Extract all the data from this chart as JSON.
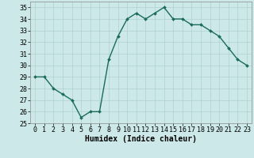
{
  "x": [
    0,
    1,
    2,
    3,
    4,
    5,
    6,
    7,
    8,
    9,
    10,
    11,
    12,
    13,
    14,
    15,
    16,
    17,
    18,
    19,
    20,
    21,
    22,
    23
  ],
  "y": [
    29,
    29,
    28,
    27.5,
    27,
    25.5,
    26,
    26,
    30.5,
    32.5,
    34,
    34.5,
    34,
    34.5,
    35,
    34,
    34,
    33.5,
    33.5,
    33,
    32.5,
    31.5,
    30.5,
    30
  ],
  "line_color": "#1a6b5a",
  "marker": "D",
  "marker_size": 2.0,
  "background_color": "#cce8e8",
  "grid_color": "#b0d0d0",
  "xlabel": "Humidex (Indice chaleur)",
  "ylim": [
    25,
    35.5
  ],
  "xlim": [
    -0.5,
    23.5
  ],
  "yticks": [
    25,
    26,
    27,
    28,
    29,
    30,
    31,
    32,
    33,
    34,
    35
  ],
  "xticks": [
    0,
    1,
    2,
    3,
    4,
    5,
    6,
    7,
    8,
    9,
    10,
    11,
    12,
    13,
    14,
    15,
    16,
    17,
    18,
    19,
    20,
    21,
    22,
    23
  ],
  "xlabel_fontsize": 7,
  "tick_fontsize": 6,
  "line_width": 1.0,
  "spine_color": "#888888"
}
